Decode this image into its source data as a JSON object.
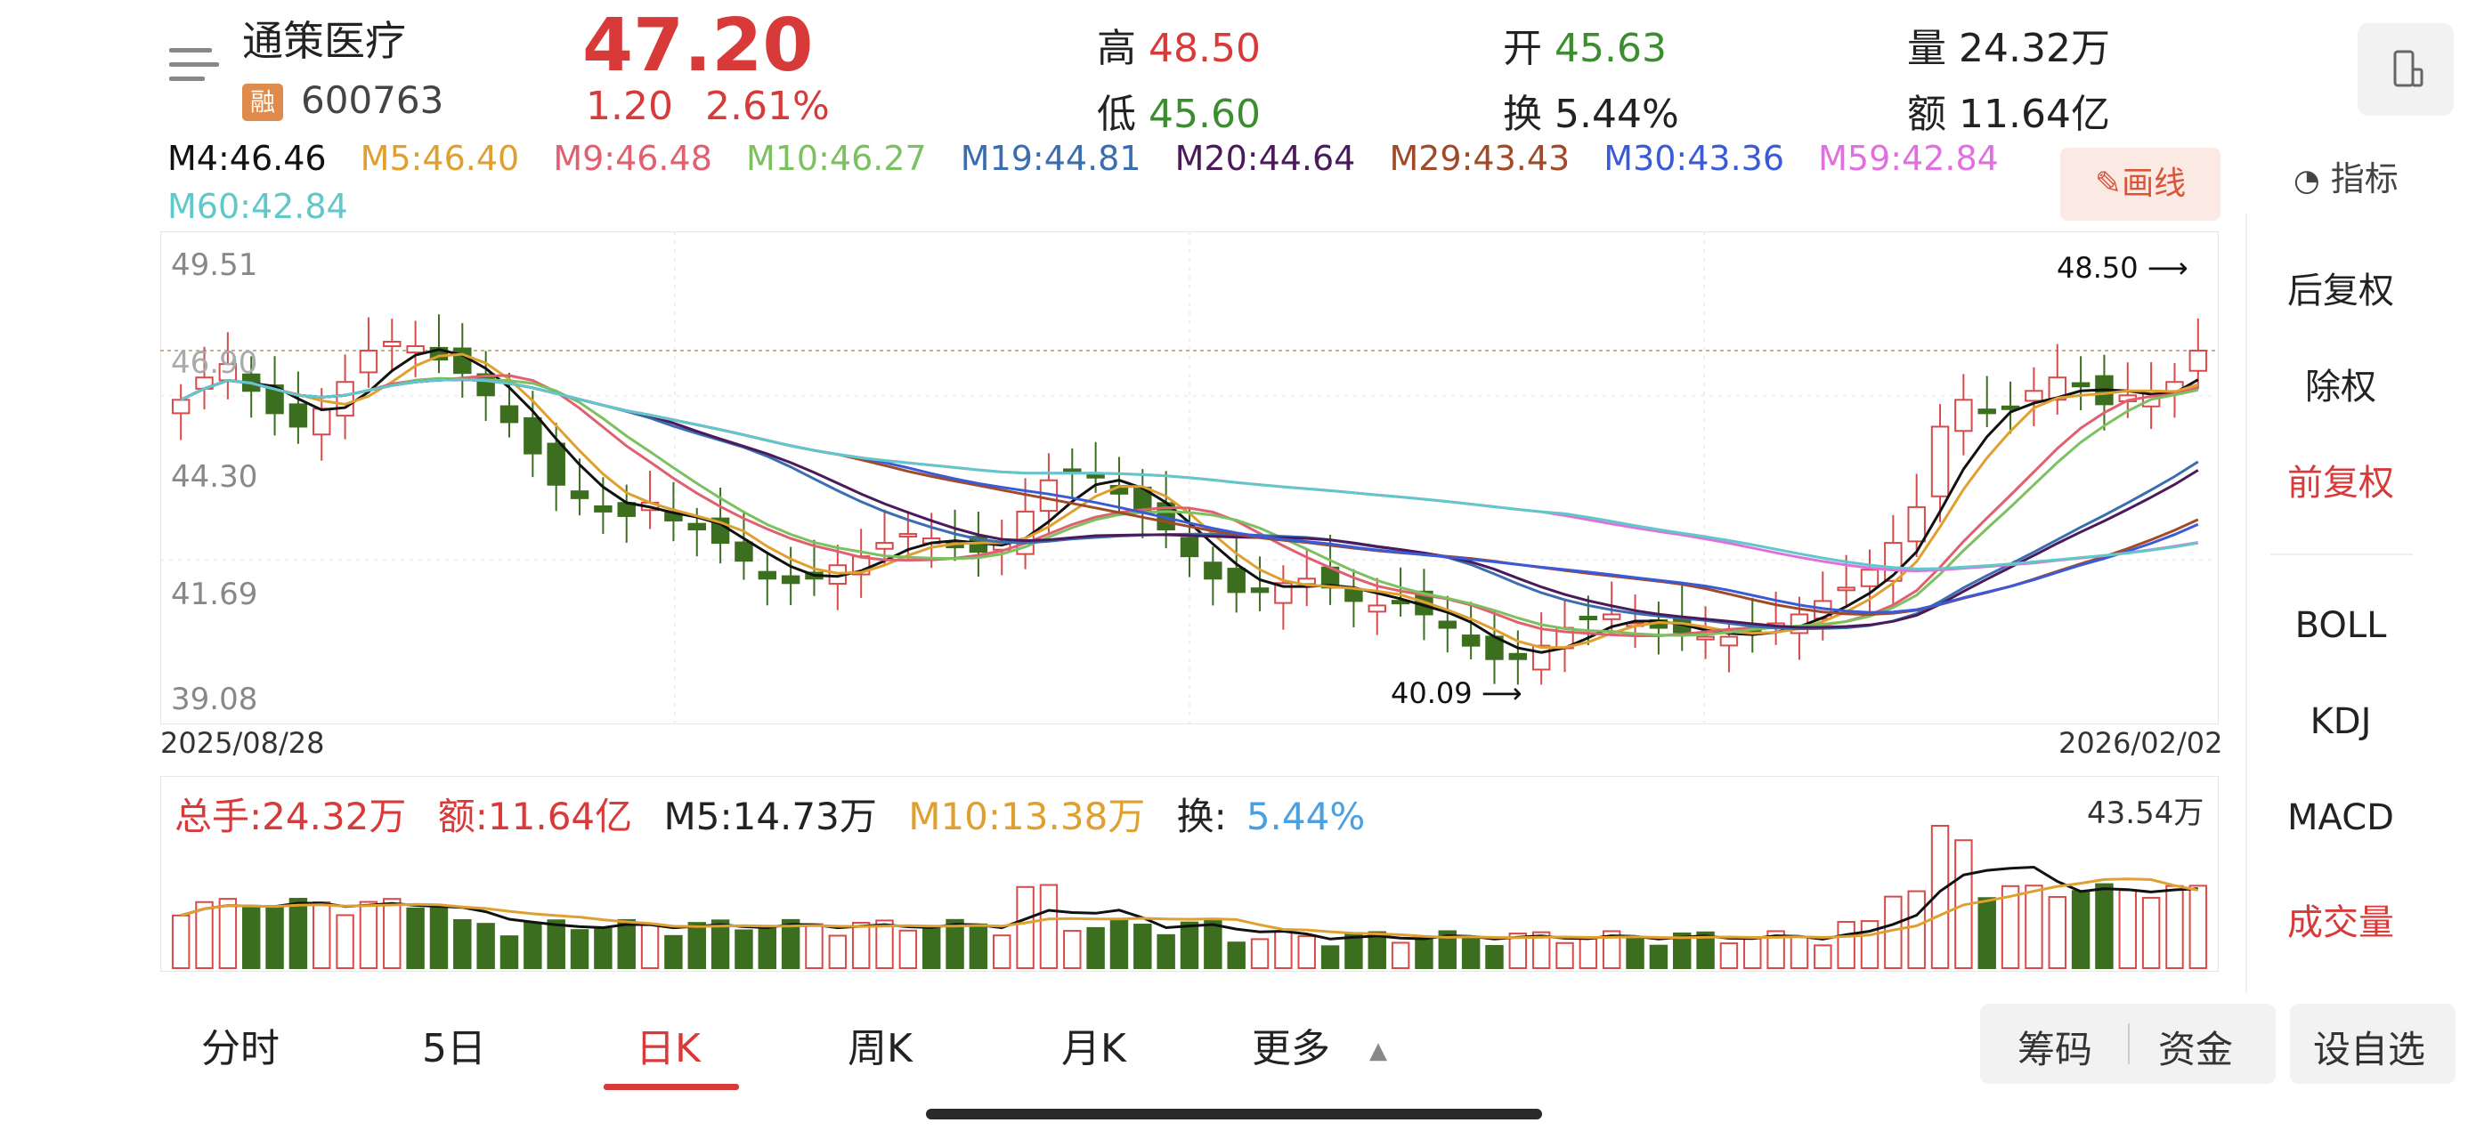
{
  "header": {
    "stock_name": "通策医疗",
    "margin_badge": "融",
    "stock_code": "600763",
    "price": "47.20",
    "change": "1.20",
    "change_pct": "2.61%",
    "stats": {
      "high_label": "高",
      "high": "48.50",
      "low_label": "低",
      "low": "45.60",
      "open_label": "开",
      "open": "45.63",
      "turnover_label": "换",
      "turnover": "5.44%",
      "volume_label": "量",
      "volume": "24.32万",
      "amount_label": "额",
      "amount": "11.64亿"
    }
  },
  "ma_legend": [
    {
      "label": "M4:46.46",
      "color": "#111111"
    },
    {
      "label": "M5:46.40",
      "color": "#e0a030"
    },
    {
      "label": "M9:46.48",
      "color": "#e06070"
    },
    {
      "label": "M10:46.27",
      "color": "#7cc060"
    },
    {
      "label": "M19:44.81",
      "color": "#3a6eb0"
    },
    {
      "label": "M20:44.64",
      "color": "#4a1a5a"
    },
    {
      "label": "M29:43.43",
      "color": "#a04a2a"
    },
    {
      "label": "M30:43.36",
      "color": "#3a5ad8"
    },
    {
      "label": "M59:42.84",
      "color": "#e070e0"
    },
    {
      "label": "M60:42.84",
      "color": "#60c8c8"
    }
  ],
  "draw_button": "画线",
  "indicator_head": "指标",
  "side_menu": [
    {
      "label": "后复权",
      "active": false
    },
    {
      "label": "除权",
      "active": false
    },
    {
      "label": "前复权",
      "active": true
    },
    {
      "label": "BOLL",
      "active": false
    },
    {
      "label": "KDJ",
      "active": false
    },
    {
      "label": "MACD",
      "active": false
    },
    {
      "label": "成交量",
      "active": true
    }
  ],
  "chart": {
    "y_ticks": [
      "49.51",
      "46.90",
      "44.30",
      "41.69",
      "39.08"
    ],
    "start_date": "2025/08/28",
    "end_date": "2026/02/02",
    "max_label": "48.50",
    "min_label": "40.09"
  },
  "volume": {
    "total_label": "总手:24.32万",
    "amount_label": "额:11.64亿",
    "m5_label": "M5:14.73万",
    "m10_label": "M10:13.38万",
    "turnover_prefix": "换:",
    "turnover_value": "5.44%",
    "max_label": "43.54万"
  },
  "chart_data": {
    "type": "candlestick",
    "title": "",
    "x_range": [
      "2025/08/28",
      "2026/02/02"
    ],
    "ylim": [
      39.08,
      49.51
    ],
    "y_ticks": [
      49.51,
      46.9,
      44.3,
      41.69,
      39.08
    ],
    "high": 48.5,
    "low": 40.09,
    "last_close": 47.2,
    "close_series": [
      46.1,
      46.6,
      46.9,
      46.3,
      45.8,
      45.5,
      45.9,
      46.5,
      47.2,
      47.4,
      47.3,
      47.0,
      46.7,
      46.2,
      45.6,
      44.9,
      44.2,
      43.9,
      43.6,
      43.5,
      43.8,
      43.4,
      43.2,
      42.9,
      42.5,
      42.1,
      42.0,
      42.1,
      42.4,
      42.6,
      42.9,
      43.1,
      43.0,
      42.8,
      42.7,
      42.9,
      43.6,
      44.3,
      44.5,
      44.4,
      44.0,
      43.6,
      43.2,
      42.6,
      42.1,
      41.8,
      41.8,
      42.0,
      42.1,
      41.9,
      41.6,
      41.5,
      41.6,
      41.3,
      41.0,
      40.6,
      40.3,
      40.3,
      40.6,
      41.0,
      41.2,
      41.3,
      41.1,
      41.0,
      40.9,
      40.8,
      40.8,
      40.9,
      41.1,
      41.3,
      41.6,
      41.9,
      42.3,
      42.9,
      43.7,
      45.5,
      46.1,
      45.8,
      45.9,
      46.3,
      46.6,
      46.4,
      46.0,
      46.2,
      46.3,
      46.5,
      47.2
    ],
    "volume_max": "43.54万",
    "volume_last": "24.32万"
  },
  "tabs": [
    {
      "label": "分时",
      "active": false
    },
    {
      "label": "5日",
      "active": false
    },
    {
      "label": "日K",
      "active": true
    },
    {
      "label": "周K",
      "active": false
    },
    {
      "label": "月K",
      "active": false
    },
    {
      "label": "更多",
      "active": false
    }
  ],
  "actions": {
    "chips": "筹码",
    "funds": "资金",
    "add_watch": "设自选"
  }
}
